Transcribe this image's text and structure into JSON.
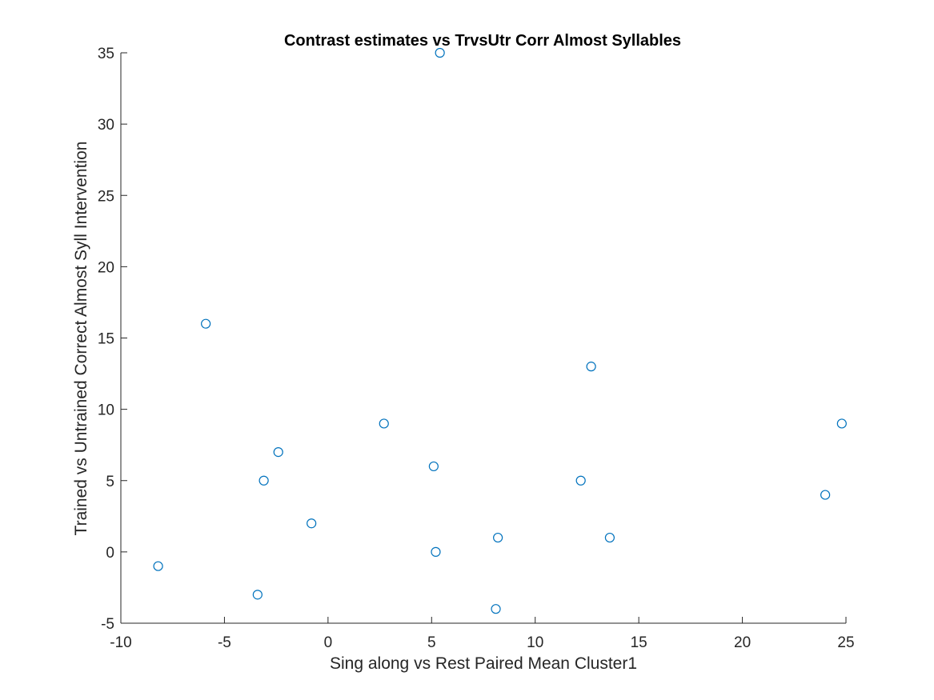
{
  "chart_data": {
    "type": "scatter",
    "title": "Contrast estimates vs TrvsUtr Corr Almost Syllables",
    "xlabel": "Sing along vs Rest Paired Mean Cluster1",
    "ylabel": "Trained vs Untrained Correct Almost Syll Intervention",
    "xlim": [
      -10,
      25
    ],
    "ylim": [
      -5,
      35
    ],
    "xticks": [
      -10,
      -5,
      0,
      5,
      10,
      15,
      20,
      25
    ],
    "yticks": [
      -5,
      0,
      5,
      10,
      15,
      20,
      25,
      30,
      35
    ],
    "grid": false,
    "legend": "none",
    "marker": "circle-open",
    "color": "#0072BD",
    "x": [
      5.4,
      -5.9,
      12.7,
      2.7,
      24.8,
      -2.4,
      5.1,
      -3.1,
      12.2,
      24.0,
      -0.8,
      8.2,
      13.6,
      5.2,
      -8.2,
      -3.4,
      8.1
    ],
    "y": [
      35,
      16,
      13,
      9,
      9,
      7,
      6,
      5,
      5,
      4,
      2,
      1,
      1,
      0,
      -1,
      -3,
      -4
    ]
  }
}
